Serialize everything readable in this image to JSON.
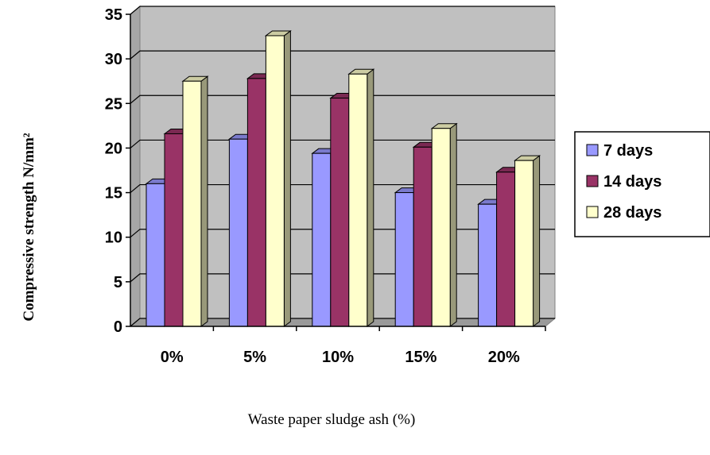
{
  "chart_data": {
    "type": "bar",
    "categories": [
      "0%",
      "5%",
      "10%",
      "15%",
      "20%"
    ],
    "series": [
      {
        "name": "7 days",
        "values": [
          16,
          21,
          19.4,
          15,
          13.7
        ],
        "color": "#9999ff"
      },
      {
        "name": "14 days",
        "values": [
          21.6,
          27.8,
          25.6,
          20.1,
          17.3
        ],
        "color": "#993366"
      },
      {
        "name": "28 days",
        "values": [
          27.5,
          32.6,
          28.3,
          22.2,
          18.6
        ],
        "color": "#ffffcc"
      }
    ],
    "xlabel": "Waste paper sludge ash (%)",
    "ylabel": "Compressive strength N/mm²",
    "ylim": [
      0,
      35
    ],
    "yticks": [
      "0",
      "5",
      "10",
      "15",
      "20",
      "25",
      "30",
      "35"
    ],
    "grid": true,
    "legend": "right",
    "plot_background": "#c0c0c0"
  }
}
